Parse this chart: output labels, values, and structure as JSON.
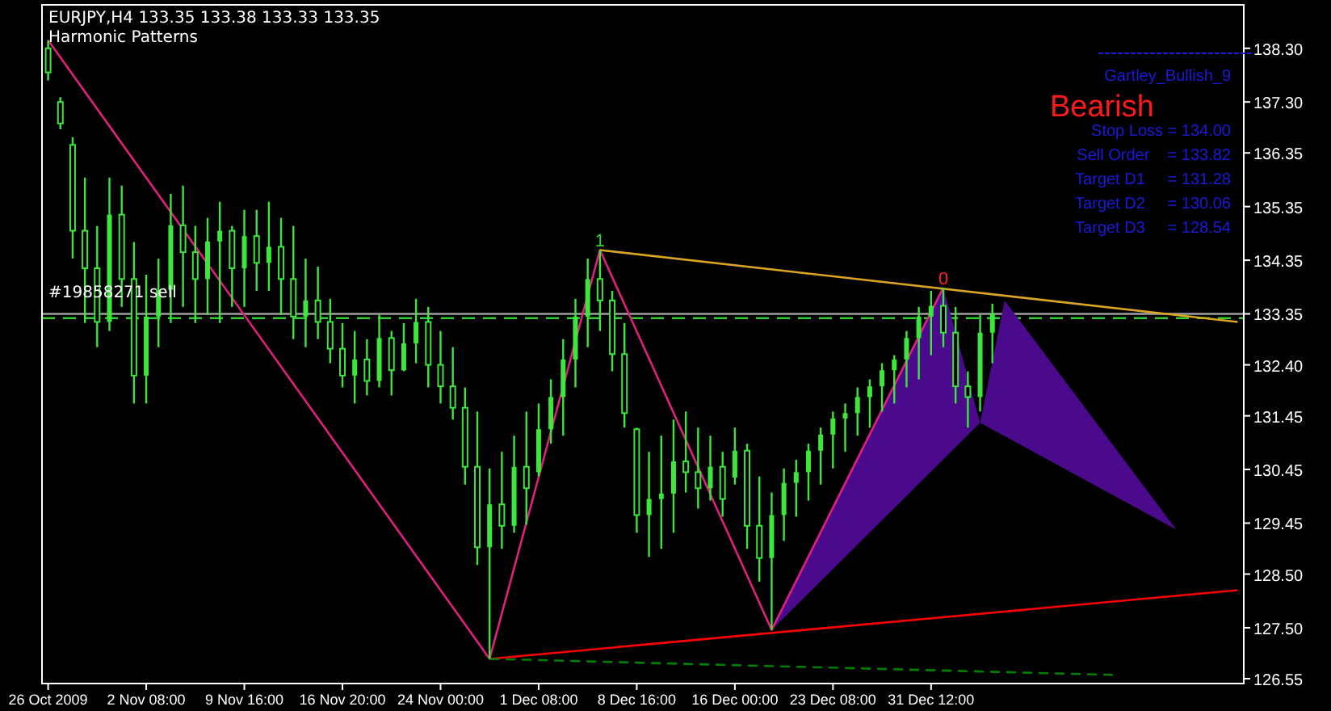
{
  "chart_data": {
    "type": "candlestick",
    "title": "EURJPY,H4  133.35 133.38 133.33 133.35",
    "subtitle": "Harmonic Patterns",
    "categories": [
      "26 Oct 2009",
      null,
      null,
      null,
      null,
      null,
      null,
      null,
      "2 Nov 08:00",
      null,
      null,
      null,
      null,
      null,
      null,
      null,
      "9 Nov 16:00",
      null,
      null,
      null,
      null,
      null,
      null,
      null,
      "16 Nov 20:00",
      null,
      null,
      null,
      null,
      null,
      null,
      null,
      "24 Nov 00:00",
      null,
      null,
      null,
      null,
      null,
      null,
      null,
      "1 Dec 08:00",
      null,
      null,
      null,
      null,
      null,
      null,
      null,
      "8 Dec 16:00",
      null,
      null,
      null,
      null,
      null,
      null,
      null,
      "16 Dec 00:00",
      null,
      null,
      null,
      null,
      null,
      null,
      null,
      "23 Dec 08:00",
      null,
      null,
      null,
      null,
      null,
      null,
      null,
      "31 Dec 12:00",
      null,
      null,
      null,
      null,
      null,
      null,
      null,
      null,
      null,
      null,
      null,
      null,
      null,
      null,
      null,
      null,
      null,
      null,
      null,
      null,
      null,
      null,
      null,
      null,
      null
    ],
    "ylim": [
      126.46,
      139.11
    ],
    "yticks": [
      126.55,
      {
        "value": 127.5,
        "label": "127.50"
      },
      {
        "value": 128.5,
        "label": "128.50"
      },
      129.45,
      130.45,
      131.45,
      {
        "value": 132.4,
        "label": "132.40"
      },
      133.35,
      134.35,
      135.35,
      136.35,
      {
        "value": 137.3,
        "label": "137.30"
      },
      {
        "value": 138.3,
        "label": "138.30"
      }
    ],
    "series": [
      {
        "color": "#3ce63c",
        "ohlc": [
          [
            138.3,
            138.45,
            137.7,
            137.85
          ],
          [
            137.3,
            137.39,
            136.79,
            136.9
          ],
          [
            136.5,
            136.64,
            134.38,
            134.9
          ],
          [
            134.9,
            135.89,
            133.18,
            134.2
          ],
          [
            134.2,
            134.99,
            132.73,
            133.2
          ],
          [
            133.2,
            135.89,
            133.03,
            135.2
          ],
          [
            135.2,
            135.74,
            133.48,
            134
          ],
          [
            134,
            134.69,
            131.68,
            132.2
          ],
          [
            132.2,
            134.08,
            131.68,
            133.3
          ],
          [
            133.3,
            134.38,
            132.73,
            133.8
          ],
          [
            133.8,
            135.59,
            133.18,
            135
          ],
          [
            135,
            135.74,
            133.48,
            134.5
          ],
          [
            134.5,
            134.99,
            133.18,
            134
          ],
          [
            134,
            135.14,
            133.33,
            134.7
          ],
          [
            134.7,
            135.44,
            133.18,
            134.9
          ],
          [
            134.9,
            134.99,
            133.48,
            134.2
          ],
          [
            134.2,
            135.29,
            133.48,
            134.8
          ],
          [
            134.8,
            135.29,
            133.78,
            134.3
          ],
          [
            134.3,
            135.44,
            133.78,
            134.6
          ],
          [
            134.6,
            135.14,
            133.33,
            134
          ],
          [
            134,
            134.99,
            132.88,
            133.3
          ],
          [
            133.3,
            134.38,
            132.73,
            133.6
          ],
          [
            133.6,
            134.23,
            132.88,
            133.2
          ],
          [
            133.2,
            133.63,
            132.43,
            132.7
          ],
          [
            132.7,
            133.18,
            131.98,
            132.2
          ],
          [
            132.2,
            133.03,
            131.68,
            132.5
          ],
          [
            132.5,
            132.88,
            131.83,
            132.1
          ],
          [
            132.1,
            133.33,
            131.98,
            132.9
          ],
          [
            132.9,
            133.03,
            131.83,
            132.3
          ],
          [
            132.3,
            133.18,
            132.28,
            132.8
          ],
          [
            132.8,
            133.63,
            132.43,
            133.2
          ],
          [
            133.2,
            133.48,
            131.98,
            132.4
          ],
          [
            132.4,
            133.03,
            131.68,
            132
          ],
          [
            132,
            132.73,
            131.38,
            131.6
          ],
          [
            131.6,
            131.98,
            130.17,
            130.5
          ],
          [
            130.5,
            131.53,
            128.67,
            129
          ],
          [
            129,
            130.47,
            126.92,
            129.8
          ],
          [
            129.8,
            130.78,
            128.97,
            129.4
          ],
          [
            129.4,
            131.08,
            129.27,
            130.5
          ],
          [
            130.5,
            131.53,
            129.42,
            130.1
          ],
          [
            130.4,
            131.68,
            130.32,
            131.2
          ],
          [
            131.2,
            132.13,
            130.93,
            131.8
          ],
          [
            131.8,
            132.88,
            131.08,
            132.5
          ],
          [
            132.5,
            133.63,
            131.98,
            133.3
          ],
          [
            133.3,
            134.38,
            132.73,
            134
          ],
          [
            134,
            134.54,
            133.03,
            133.6
          ],
          [
            133.6,
            133.78,
            132.28,
            132.6
          ],
          [
            132.6,
            133.18,
            131.23,
            131.5
          ],
          [
            131.2,
            131.23,
            129.27,
            129.6
          ],
          [
            129.6,
            130.78,
            128.82,
            129.9
          ],
          [
            129.9,
            131.08,
            128.97,
            130
          ],
          [
            130,
            131.38,
            129.27,
            130.6
          ],
          [
            130.6,
            131.53,
            130.02,
            130.4
          ],
          [
            130.4,
            131.23,
            129.72,
            130.1
          ],
          [
            130.1,
            131.08,
            129.87,
            130.5
          ],
          [
            130.5,
            130.78,
            129.57,
            129.9
          ],
          [
            130.3,
            131.23,
            130.17,
            130.8
          ],
          [
            130.8,
            130.93,
            128.97,
            129.4
          ],
          [
            129.4,
            130.32,
            128.36,
            128.8
          ],
          [
            128.8,
            130.02,
            127.46,
            129.6
          ],
          [
            129.6,
            130.47,
            129.12,
            130.2
          ],
          [
            130.2,
            130.63,
            129.57,
            130.4
          ],
          [
            130.4,
            130.93,
            129.87,
            130.8
          ],
          [
            130.8,
            131.23,
            130.17,
            131.1
          ],
          [
            131.1,
            131.53,
            130.47,
            131.4
          ],
          [
            131.4,
            131.68,
            130.78,
            131.5
          ],
          [
            131.5,
            131.98,
            131.08,
            131.8
          ],
          [
            131.8,
            132.13,
            131.23,
            132
          ],
          [
            132,
            132.43,
            131.53,
            132.3
          ],
          [
            132.3,
            132.58,
            131.68,
            132.5
          ],
          [
            132.5,
            133.03,
            131.98,
            132.9
          ],
          [
            132.9,
            133.48,
            132.13,
            133.3
          ],
          [
            133.3,
            133.78,
            132.58,
            133.5
          ],
          [
            133.5,
            133.84,
            132.73,
            133
          ],
          [
            133,
            133.48,
            131.68,
            132
          ],
          [
            132,
            132.28,
            131.23,
            131.8
          ],
          [
            131.8,
            133.33,
            131.53,
            133
          ],
          [
            133,
            133.54,
            132.43,
            133.35
          ],
          null,
          null,
          null,
          null,
          null,
          null,
          null,
          null,
          null,
          null,
          null,
          null,
          null,
          null,
          null,
          null,
          null,
          null,
          null,
          null
        ]
      },
      {
        "type": "area",
        "color": "#4b0a8c",
        "values": [
          null,
          null,
          null,
          null,
          null,
          null,
          null,
          null,
          null,
          null,
          null,
          null,
          null,
          null,
          null,
          null,
          null,
          null,
          null,
          null,
          null,
          null,
          null,
          null,
          null,
          null,
          null,
          null,
          null,
          null,
          null,
          null,
          null,
          null,
          null,
          null,
          null,
          null,
          null,
          null,
          null,
          null,
          null,
          null,
          null,
          null,
          null,
          null,
          null,
          null,
          null,
          null,
          null,
          null,
          null,
          null,
          null,
          null,
          null,
          127.46,
          null,
          null,
          null,
          null,
          null,
          null,
          null,
          null,
          null,
          null,
          null,
          null,
          null,
          133.84,
          null,
          null,
          131.32,
          null,
          133.6,
          null,
          null,
          null,
          null,
          null,
          null,
          null,
          null,
          null,
          null,
          null,
          null,
          null,
          129.33,
          null,
          null,
          null,
          null,
          null
        ]
      },
      {
        "type": "line",
        "color": "#e0207f",
        "values": [
          138.45,
          null,
          null,
          null,
          null,
          null,
          null,
          null,
          null,
          null,
          null,
          null,
          null,
          null,
          null,
          null,
          null,
          null,
          null,
          null,
          null,
          null,
          null,
          null,
          null,
          null,
          null,
          null,
          null,
          null,
          null,
          null,
          null,
          null,
          null,
          null,
          126.92,
          null,
          null,
          null,
          null,
          null,
          null,
          null,
          null,
          134.54,
          null,
          null,
          null,
          null,
          null,
          null,
          null,
          null,
          null,
          null,
          null,
          null,
          null,
          127.46,
          null,
          null,
          null,
          null,
          null,
          null,
          null,
          null,
          null,
          null,
          null,
          null,
          null,
          133.84,
          null,
          null,
          null,
          null,
          null,
          null,
          null,
          null,
          null,
          null,
          null,
          null,
          null,
          null,
          null,
          null,
          null,
          null,
          null,
          null,
          null,
          null,
          null,
          null
        ]
      },
      {
        "type": "line",
        "color": "#daa520",
        "values": [
          null,
          null,
          null,
          null,
          null,
          null,
          null,
          null,
          null,
          null,
          null,
          null,
          null,
          null,
          null,
          null,
          null,
          null,
          null,
          null,
          null,
          null,
          null,
          null,
          null,
          null,
          null,
          null,
          null,
          null,
          null,
          null,
          null,
          null,
          null,
          null,
          null,
          null,
          null,
          null,
          null,
          null,
          null,
          null,
          null,
          134.54,
          null,
          null,
          null,
          null,
          null,
          null,
          null,
          null,
          null,
          null,
          null,
          null,
          null,
          null,
          null,
          null,
          null,
          null,
          null,
          null,
          null,
          null,
          null,
          null,
          null,
          null,
          null,
          null,
          null,
          null,
          null,
          null,
          null,
          null,
          null,
          null,
          null,
          null,
          null,
          null,
          null,
          null,
          null,
          null,
          null,
          null,
          null,
          null,
          null,
          null,
          null,
          133.2
        ]
      },
      {
        "type": "line",
        "color": "#ff0000",
        "values": [
          null,
          null,
          null,
          null,
          null,
          null,
          null,
          null,
          null,
          null,
          null,
          null,
          null,
          null,
          null,
          null,
          null,
          null,
          null,
          null,
          null,
          null,
          null,
          null,
          null,
          null,
          null,
          null,
          null,
          null,
          null,
          null,
          null,
          null,
          null,
          null,
          126.92,
          null,
          null,
          null,
          null,
          null,
          null,
          null,
          null,
          null,
          null,
          null,
          null,
          null,
          null,
          null,
          null,
          null,
          null,
          null,
          null,
          null,
          null,
          null,
          null,
          null,
          null,
          null,
          null,
          null,
          null,
          null,
          null,
          null,
          null,
          null,
          null,
          null,
          null,
          null,
          null,
          null,
          null,
          null,
          null,
          null,
          null,
          null,
          null,
          null,
          null,
          null,
          null,
          null,
          null,
          null,
          null,
          null,
          null,
          null,
          null,
          128.2
        ]
      },
      {
        "type": "line",
        "color": "#008000",
        "line_style": "dashed",
        "values": [
          null,
          null,
          null,
          null,
          null,
          null,
          null,
          null,
          null,
          null,
          null,
          null,
          null,
          null,
          null,
          null,
          null,
          null,
          null,
          null,
          null,
          null,
          null,
          null,
          null,
          null,
          null,
          null,
          null,
          null,
          null,
          null,
          null,
          null,
          null,
          null,
          126.92,
          null,
          null,
          null,
          null,
          null,
          null,
          null,
          null,
          null,
          null,
          null,
          null,
          null,
          null,
          null,
          null,
          null,
          null,
          null,
          null,
          null,
          null,
          null,
          null,
          null,
          null,
          null,
          null,
          null,
          null,
          null,
          null,
          null,
          null,
          null,
          null,
          null,
          null,
          null,
          null,
          null,
          null,
          null,
          null,
          null,
          null,
          null,
          null,
          null,
          null,
          126.62,
          null,
          null,
          null,
          null,
          null,
          null,
          null,
          null,
          null,
          null
        ]
      }
    ],
    "ref_lines": [
      {
        "axis": "y",
        "value": 133.35,
        "color": "#a0a0a0",
        "line_style": "solid"
      },
      {
        "axis": "y",
        "value": 133.27,
        "label": "#19858271 sell",
        "color": "#32cd32",
        "line_style": "dashed"
      }
    ],
    "annotations": [
      "1",
      "0",
      "Gartley_Bullish_9",
      "Bearish",
      "Stop Loss = 134.00",
      "Sell Order    = 133.82",
      "Target D1     = 131.28",
      "Target D2     = 130.06",
      "Target D3     = 128.54"
    ]
  }
}
